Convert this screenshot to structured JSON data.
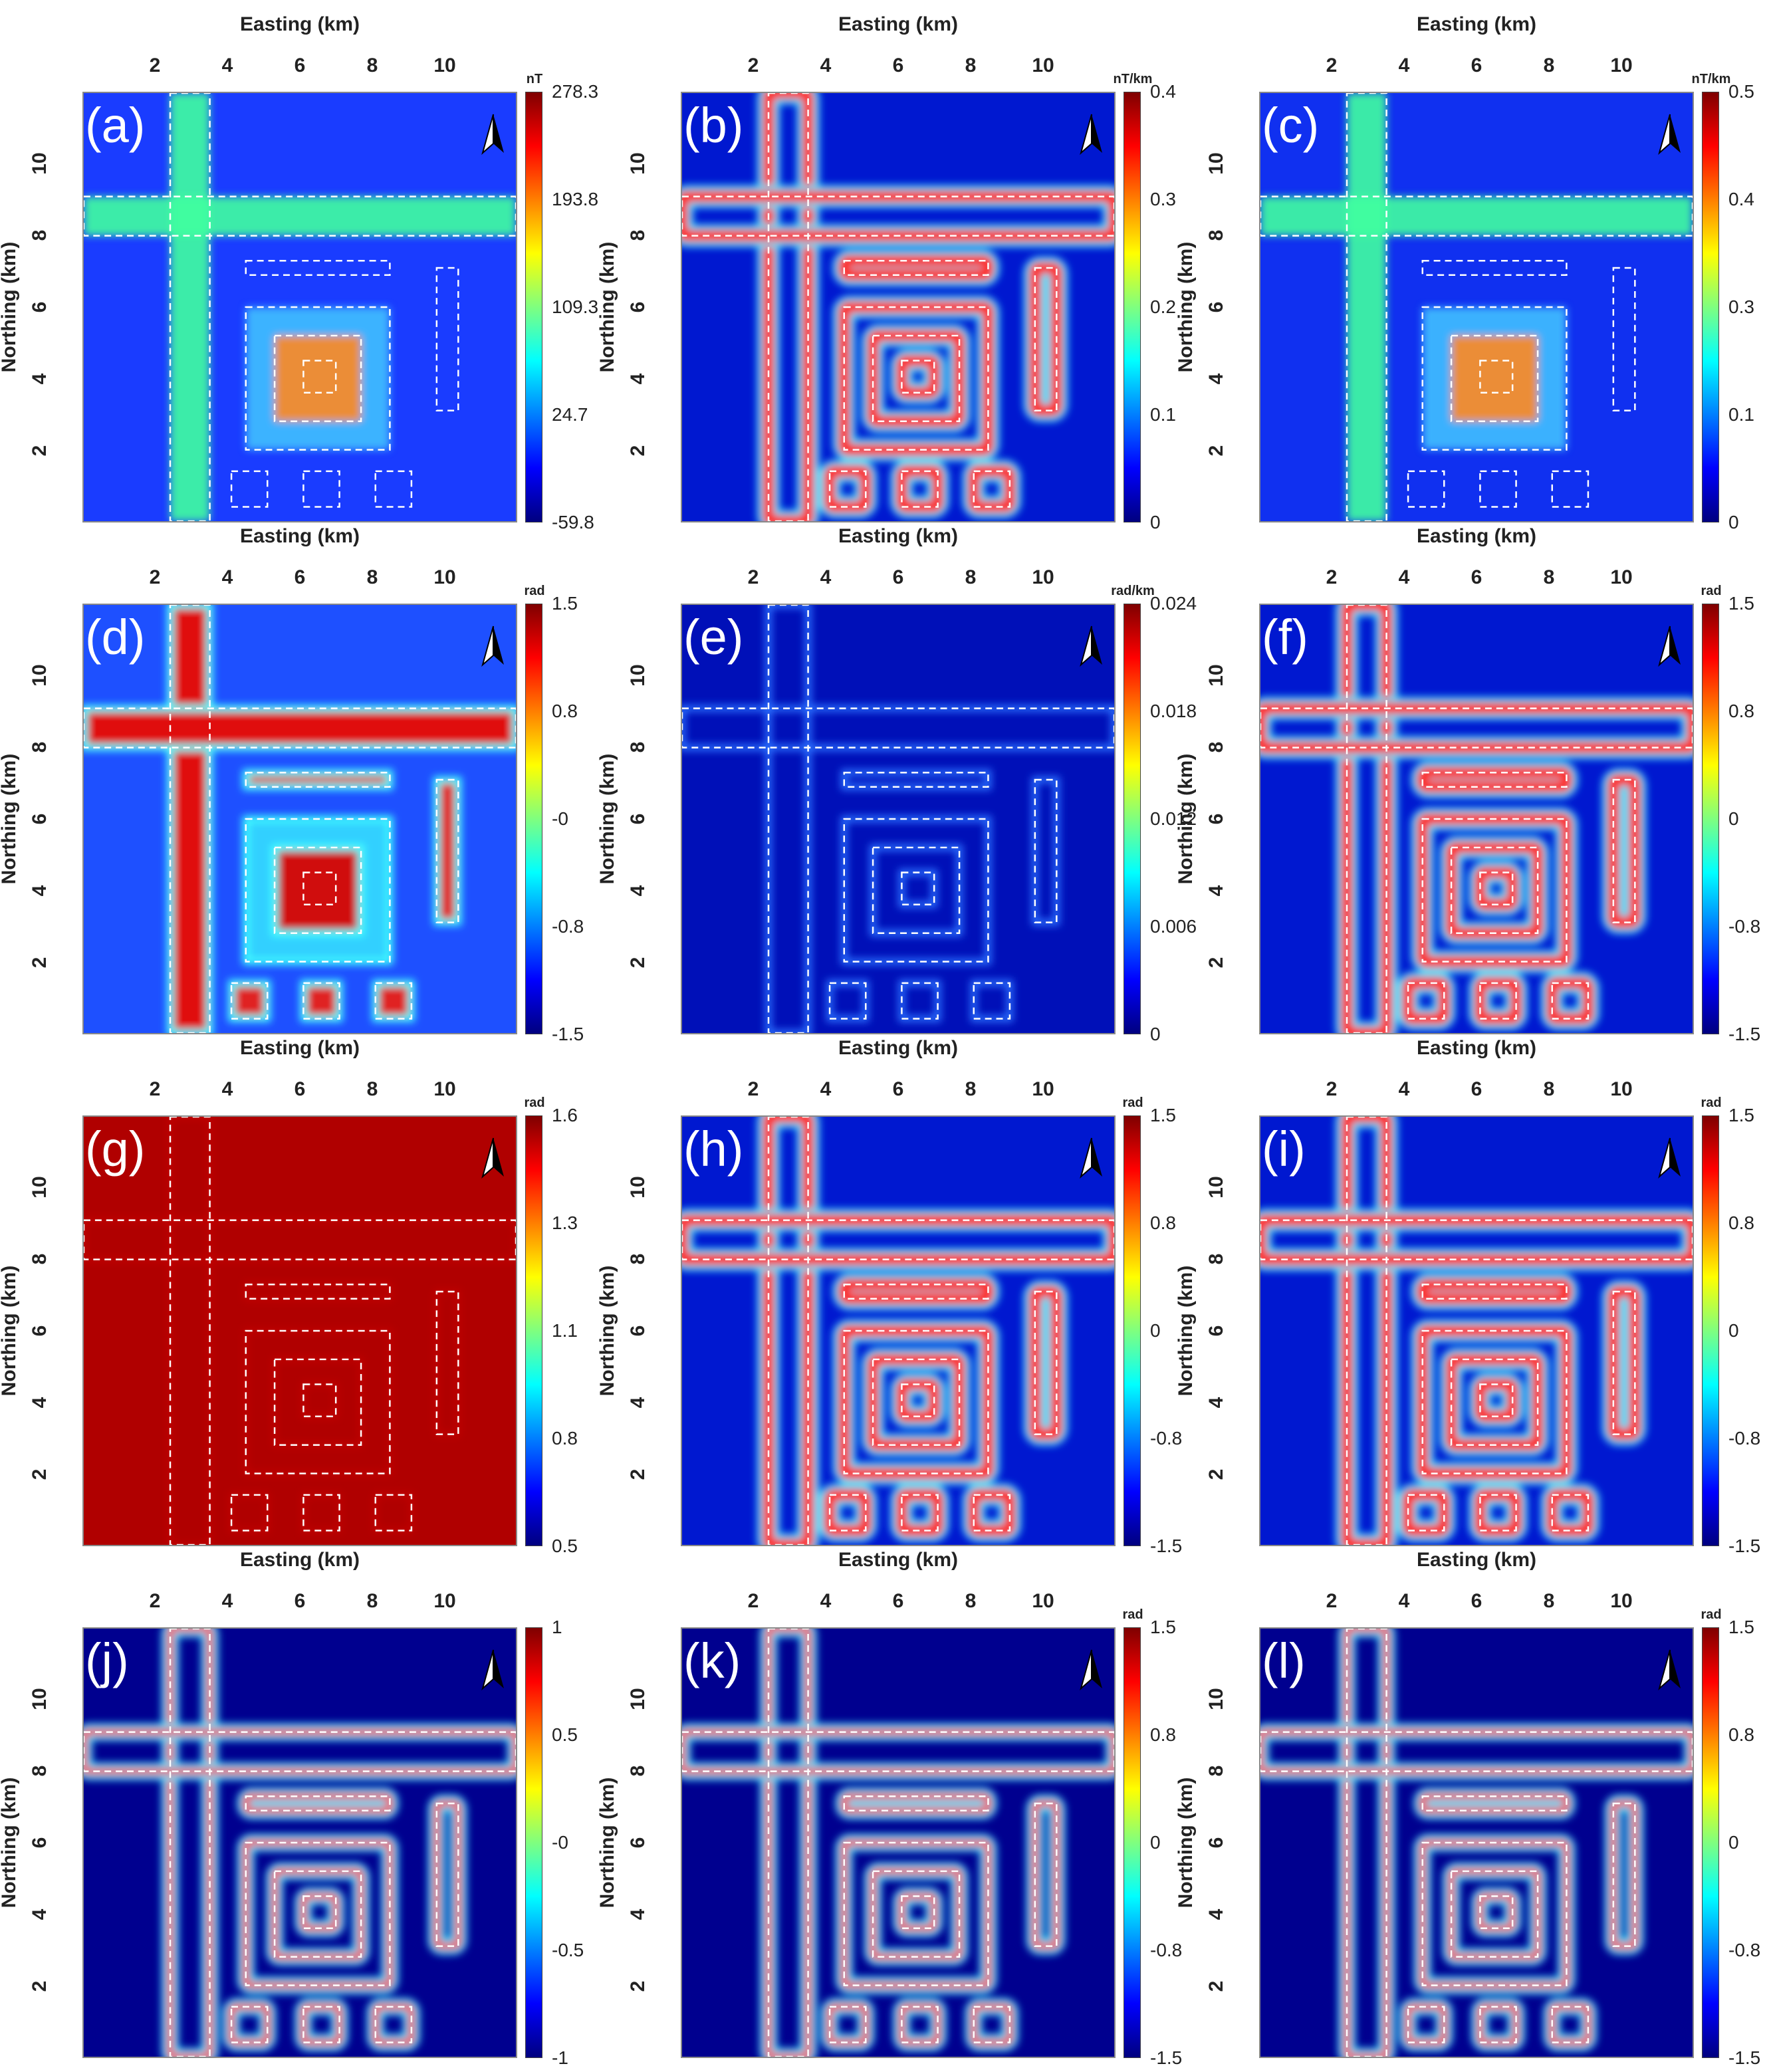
{
  "axes": {
    "xlabel": "Easting (km)",
    "ylabel": "Northing (km)",
    "xticks": [
      "2",
      "4",
      "6",
      "8",
      "10"
    ],
    "yticks": [
      "2",
      "4",
      "6",
      "8",
      "10"
    ]
  },
  "colors": {
    "jet": [
      "#00007f",
      "#0000ff",
      "#007fff",
      "#00ffff",
      "#7fff7f",
      "#ffff00",
      "#ff7f00",
      "#ff0000",
      "#7f0000"
    ],
    "outline": "#ffffff",
    "north_arrow": "#000000"
  },
  "panels": [
    {
      "label": "(a)",
      "unit": "nT",
      "ticks": [
        "278.3",
        "193.8",
        "109.3",
        "24.7",
        "-59.8"
      ],
      "background": "#1a3cff",
      "mode": "magnetic"
    },
    {
      "label": "(b)",
      "unit": "nT/km",
      "ticks": [
        "0.4",
        "0.3",
        "0.2",
        "0.1",
        "0"
      ],
      "background": "#0018d0",
      "mode": "edge-double"
    },
    {
      "label": "(c)",
      "unit": "nT/km",
      "ticks": [
        "0.5",
        "0.4",
        "0.3",
        "0.1",
        "0"
      ],
      "background": "#1030f0",
      "mode": "magnetic"
    },
    {
      "label": "(d)",
      "unit": "rad",
      "ticks": [
        "1.5",
        "0.8",
        "-0",
        "-0.8",
        "-1.5"
      ],
      "background": "#1e50ff",
      "mode": "filled"
    },
    {
      "label": "(e)",
      "unit": "rad/km",
      "ticks": [
        "0.024",
        "0.018",
        "0.012",
        "0.006",
        "0"
      ],
      "background": "#0010b8",
      "mode": "faint"
    },
    {
      "label": "(f)",
      "unit": "rad",
      "ticks": [
        "1.5",
        "0.8",
        "0",
        "-0.8",
        "-1.5"
      ],
      "background": "#0018d0",
      "mode": "edge-double"
    },
    {
      "label": "(g)",
      "unit": "rad",
      "ticks": [
        "1.6",
        "1.3",
        "1.1",
        "0.8",
        "0.5"
      ],
      "background": "#b00000",
      "mode": "red"
    },
    {
      "label": "(h)",
      "unit": "rad",
      "ticks": [
        "1.5",
        "0.8",
        "0",
        "-0.8",
        "-1.5"
      ],
      "background": "#0018d0",
      "mode": "edge-double"
    },
    {
      "label": "(i)",
      "unit": "rad",
      "ticks": [
        "1.5",
        "0.8",
        "0",
        "-0.8",
        "-1.5"
      ],
      "background": "#0018d0",
      "mode": "edge-double"
    },
    {
      "label": "(j)",
      "unit": "",
      "ticks": [
        "1",
        "0.5",
        "-0",
        "-0.5",
        "-1"
      ],
      "background": "#00008f",
      "mode": "edge-thin"
    },
    {
      "label": "(k)",
      "unit": "rad",
      "ticks": [
        "1.5",
        "0.8",
        "0",
        "-0.8",
        "-1.5"
      ],
      "background": "#00008f",
      "mode": "edge-thin"
    },
    {
      "label": "(l)",
      "unit": "rad",
      "ticks": [
        "1.5",
        "0.8",
        "0",
        "-0.8",
        "-1.5"
      ],
      "background": "#00008f",
      "mode": "edge-thin"
    }
  ],
  "chart_data": {
    "type": "heatmap",
    "xlabel": "Easting (km)",
    "ylabel": "Northing (km)",
    "xlim": [
      0,
      12
    ],
    "ylim": [
      0,
      12
    ],
    "xticks": [
      2,
      4,
      6,
      8,
      10
    ],
    "yticks": [
      2,
      4,
      6,
      8,
      10
    ],
    "colormap": "jet",
    "source_bodies": [
      {
        "name": "vertical-dike",
        "x": [
          2.4,
          3.5
        ],
        "y": [
          0,
          12
        ]
      },
      {
        "name": "horizontal-dike",
        "x": [
          0,
          12
        ],
        "y": [
          8,
          9.1
        ]
      },
      {
        "name": "horizontal-bar",
        "x": [
          4.5,
          8.5
        ],
        "y": [
          6.9,
          7.3
        ]
      },
      {
        "name": "vertical-bar",
        "x": [
          9.8,
          10.4
        ],
        "y": [
          3.1,
          7.1
        ]
      },
      {
        "name": "outer-square",
        "x": [
          4.5,
          8.5
        ],
        "y": [
          2,
          6
        ]
      },
      {
        "name": "middle-square",
        "x": [
          5.3,
          7.7
        ],
        "y": [
          2.8,
          5.2
        ]
      },
      {
        "name": "inner-square",
        "x": [
          6.1,
          7.0
        ],
        "y": [
          3.6,
          4.5
        ]
      },
      {
        "name": "small-square-1",
        "x": [
          4.1,
          5.1
        ],
        "y": [
          0.4,
          1.4
        ]
      },
      {
        "name": "small-square-2",
        "x": [
          6.1,
          7.1
        ],
        "y": [
          0.4,
          1.4
        ]
      },
      {
        "name": "small-square-3",
        "x": [
          8.1,
          9.1
        ],
        "y": [
          0.4,
          1.4
        ]
      }
    ],
    "panels": [
      {
        "label": "(a)",
        "unit": "nT",
        "clim": [
          -59.8,
          278.3
        ]
      },
      {
        "label": "(b)",
        "unit": "nT/km",
        "clim": [
          0,
          0.4
        ]
      },
      {
        "label": "(c)",
        "unit": "nT/km",
        "clim": [
          0,
          0.5
        ]
      },
      {
        "label": "(d)",
        "unit": "rad",
        "clim": [
          -1.5,
          1.5
        ]
      },
      {
        "label": "(e)",
        "unit": "rad/km",
        "clim": [
          0,
          0.024
        ]
      },
      {
        "label": "(f)",
        "unit": "rad",
        "clim": [
          -1.5,
          1.5
        ]
      },
      {
        "label": "(g)",
        "unit": "rad",
        "clim": [
          0.5,
          1.6
        ]
      },
      {
        "label": "(h)",
        "unit": "rad",
        "clim": [
          -1.5,
          1.5
        ]
      },
      {
        "label": "(i)",
        "unit": "rad",
        "clim": [
          -1.5,
          1.5
        ]
      },
      {
        "label": "(j)",
        "unit": "",
        "clim": [
          -1,
          1
        ]
      },
      {
        "label": "(k)",
        "unit": "rad",
        "clim": [
          -1.5,
          1.5
        ]
      },
      {
        "label": "(l)",
        "unit": "rad",
        "clim": [
          -1.5,
          1.5
        ]
      }
    ]
  }
}
